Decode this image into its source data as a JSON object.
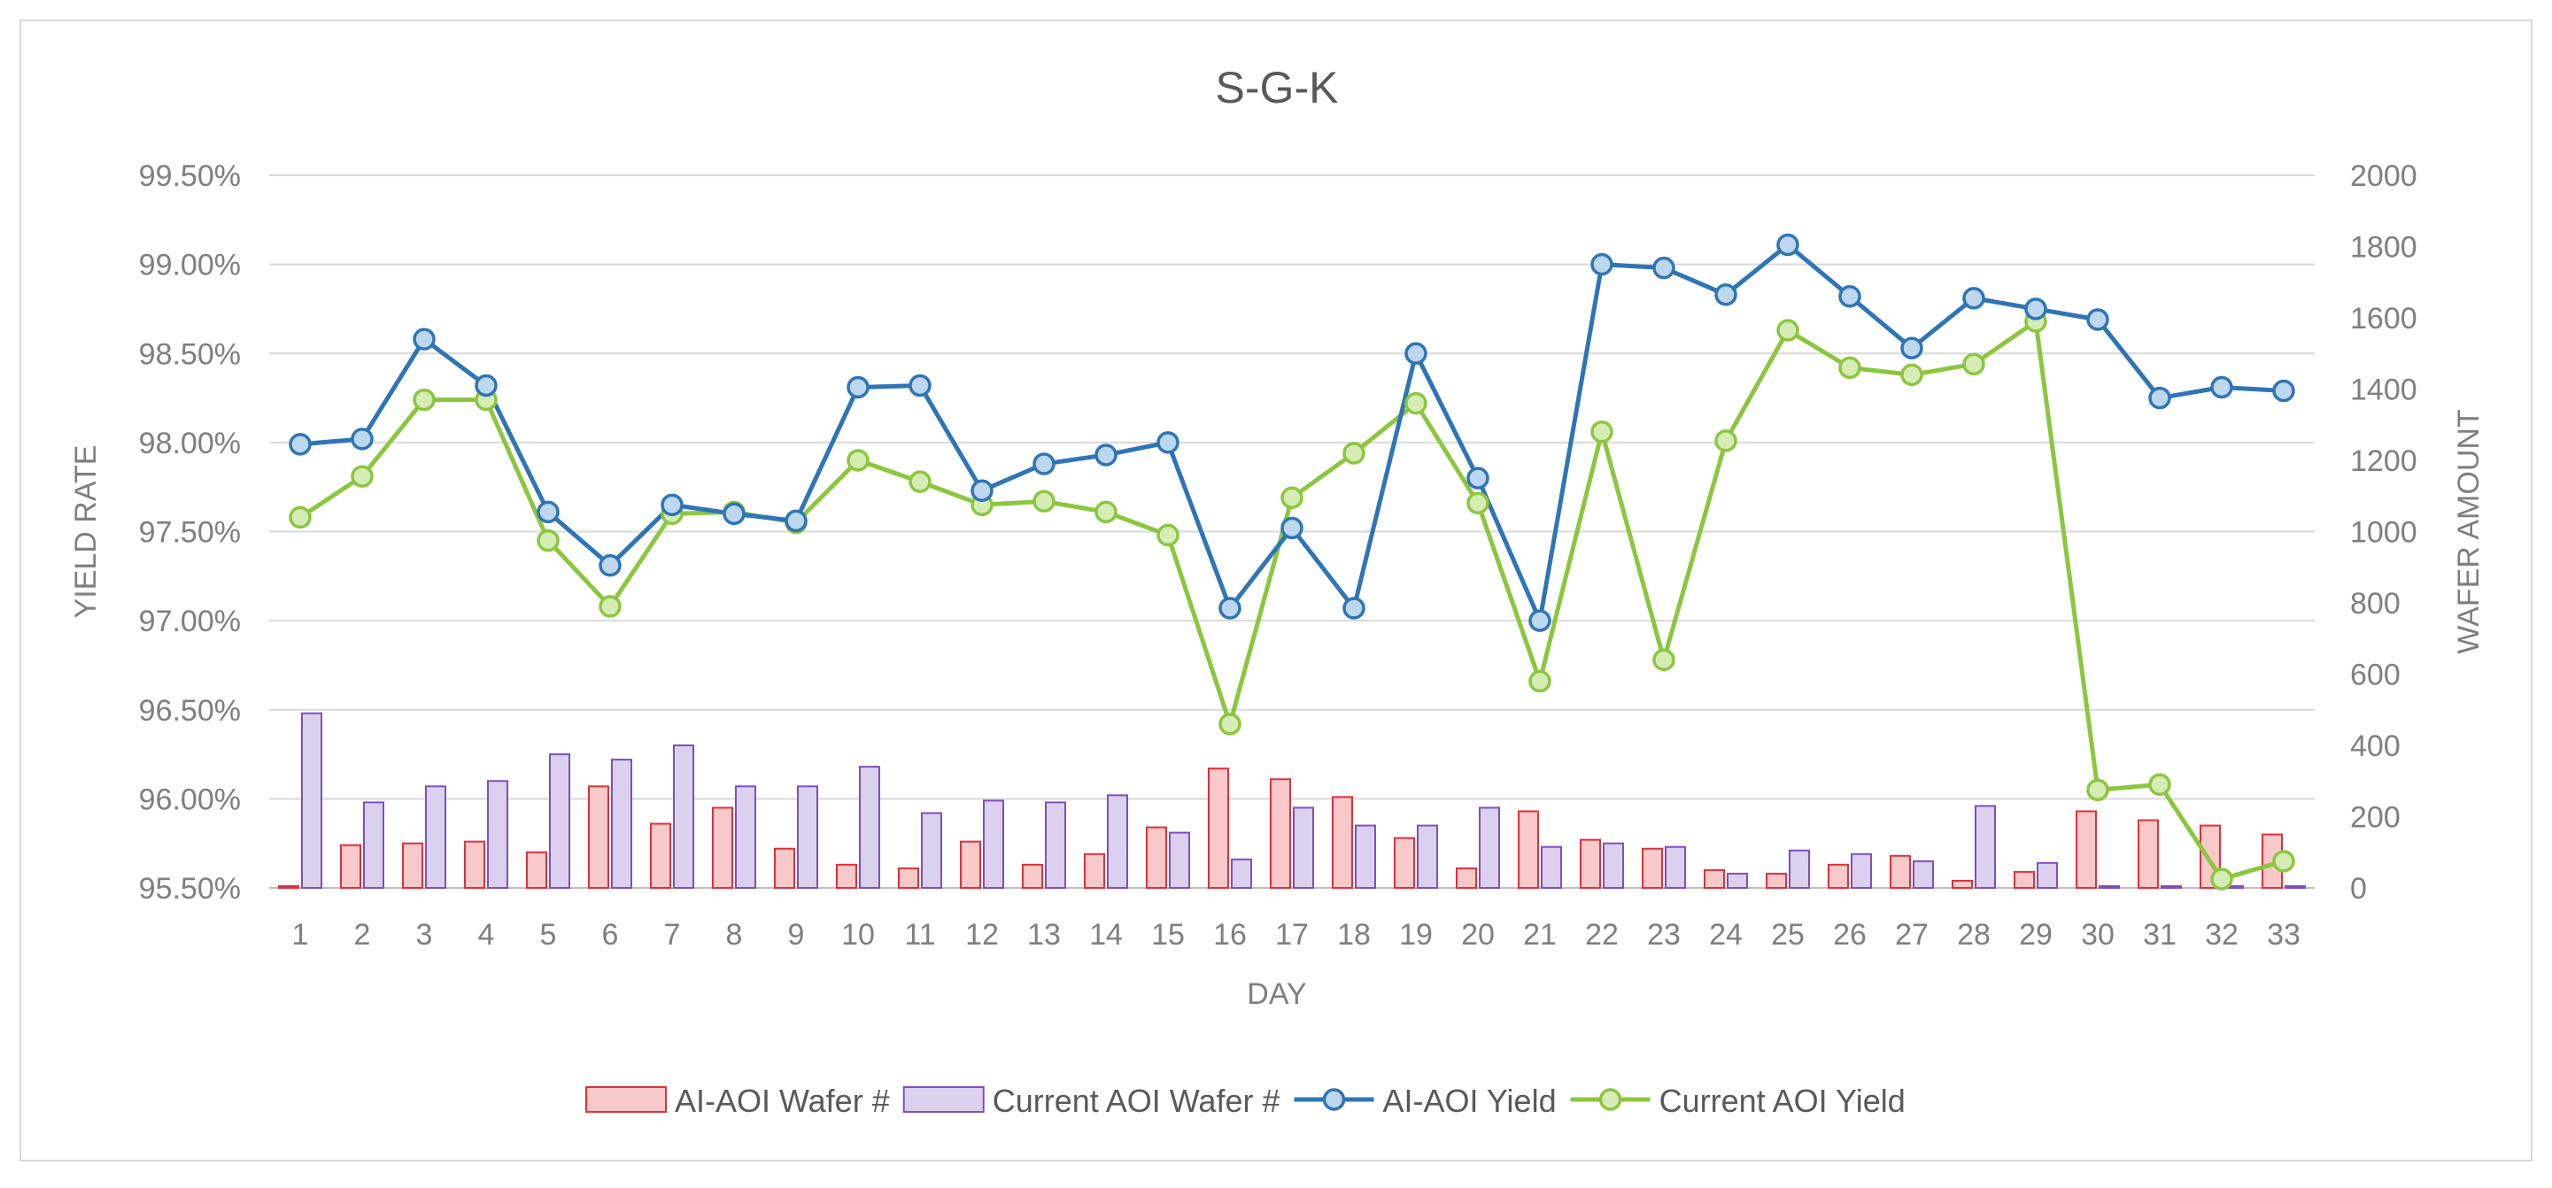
{
  "chart_data": {
    "type": "bar+line",
    "title": "S-G-K",
    "xlabel": "DAY",
    "ylabel_left": "YIELD RATE",
    "ylabel_right": "WAFER AMOUNT",
    "categories": [
      "1",
      "2",
      "3",
      "4",
      "5",
      "6",
      "7",
      "8",
      "9",
      "10",
      "11",
      "12",
      "13",
      "14",
      "15",
      "16",
      "17",
      "18",
      "19",
      "20",
      "21",
      "22",
      "23",
      "24",
      "25",
      "26",
      "27",
      "28",
      "29",
      "30",
      "31",
      "32",
      "33"
    ],
    "y_left": {
      "min": 95.5,
      "max": 99.5,
      "step": 0.5,
      "ticks": [
        "95.50%",
        "96.00%",
        "96.50%",
        "97.00%",
        "97.50%",
        "98.00%",
        "98.50%",
        "99.00%",
        "99.50%"
      ]
    },
    "y_right": {
      "min": 0,
      "max": 2000,
      "step": 200,
      "ticks": [
        "0",
        "200",
        "400",
        "600",
        "800",
        "1000",
        "1200",
        "1400",
        "1600",
        "1800",
        "2000"
      ]
    },
    "grid": true,
    "legend_position": "bottom",
    "bar_series": [
      {
        "name": "AI-AOI Wafer #",
        "fill": "#f9c9c9",
        "stroke": "#e0303a",
        "values": [
          5,
          120,
          125,
          130,
          100,
          285,
          180,
          225,
          110,
          65,
          55,
          130,
          65,
          95,
          170,
          335,
          305,
          255,
          140,
          55,
          215,
          135,
          110,
          50,
          40,
          65,
          90,
          20,
          45,
          215,
          190,
          175,
          150
        ]
      },
      {
        "name": "Current AOI Wafer #",
        "fill": "#dcd0ef",
        "stroke": "#7f4fbf",
        "values": [
          490,
          240,
          285,
          300,
          375,
          360,
          400,
          285,
          285,
          340,
          210,
          245,
          240,
          260,
          155,
          80,
          225,
          175,
          175,
          225,
          115,
          125,
          115,
          40,
          105,
          95,
          75,
          230,
          70,
          5,
          5,
          5,
          5
        ]
      }
    ],
    "line_series": [
      {
        "name": "AI-AOI Yield",
        "color": "#2e75b6",
        "marker_fill": "#bdd7ee",
        "values": [
          97.99,
          98.02,
          98.58,
          98.32,
          97.61,
          97.31,
          97.65,
          97.6,
          97.56,
          98.31,
          98.32,
          97.73,
          97.88,
          97.93,
          98.0,
          97.07,
          97.52,
          97.07,
          98.5,
          97.8,
          97.0,
          99.0,
          98.98,
          98.83,
          99.11,
          98.82,
          98.53,
          98.81,
          98.75,
          98.69,
          98.25,
          98.31,
          98.29
        ]
      },
      {
        "name": "Current AOI Yield",
        "color": "#8cc63f",
        "marker_fill": "#d5ecb5",
        "values": [
          97.58,
          97.81,
          98.24,
          98.24,
          97.45,
          97.08,
          97.6,
          97.61,
          97.55,
          97.9,
          97.78,
          97.65,
          97.67,
          97.61,
          97.48,
          96.42,
          97.69,
          97.94,
          98.22,
          97.66,
          96.66,
          98.06,
          96.78,
          98.01,
          98.63,
          98.42,
          98.38,
          98.44,
          98.68,
          96.05,
          96.08,
          95.55,
          95.65
        ]
      }
    ]
  }
}
